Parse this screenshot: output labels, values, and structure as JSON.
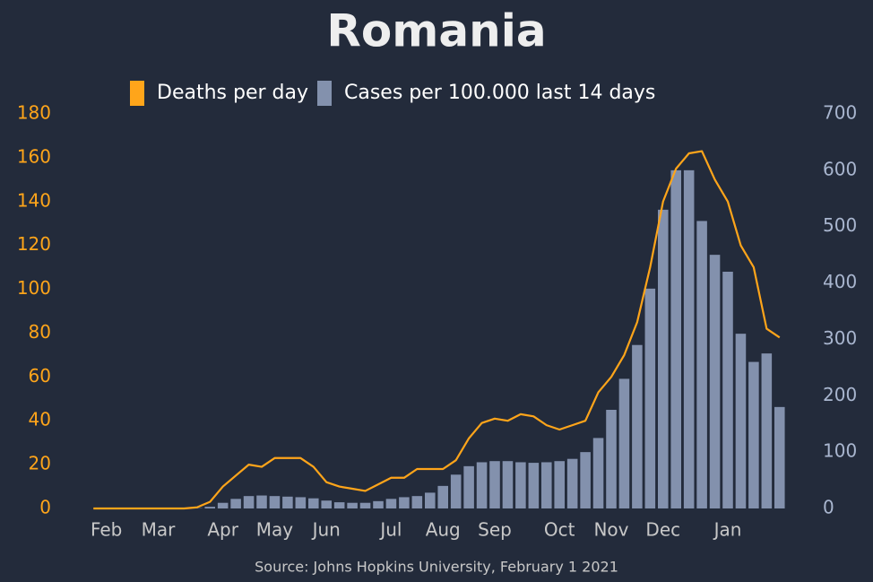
{
  "chart_data": {
    "type": "combo",
    "title": "Romania",
    "source": "Source: Johns Hopkins University, February 1 2021",
    "categories": [
      null,
      "Feb",
      null,
      null,
      null,
      "Mar",
      null,
      null,
      null,
      null,
      "Apr",
      null,
      null,
      null,
      "May",
      null,
      null,
      null,
      "Jun",
      null,
      null,
      null,
      null,
      "Jul",
      null,
      null,
      null,
      "Aug",
      null,
      null,
      null,
      "Sep",
      null,
      null,
      null,
      null,
      "Oct",
      null,
      null,
      null,
      "Nov",
      null,
      null,
      null,
      "Dec",
      null,
      null,
      null,
      null,
      "Jan",
      null,
      null,
      null,
      null
    ],
    "series": [
      {
        "name": "Deaths per day",
        "type": "line",
        "color": "#ffa51a",
        "values": [
          0,
          0,
          0,
          0,
          0,
          0,
          0,
          0,
          0.5,
          3,
          10,
          15,
          20,
          19,
          23,
          23,
          23,
          19,
          12,
          10,
          9,
          8,
          11,
          14,
          14,
          18,
          18,
          18,
          22,
          32,
          39,
          41,
          40,
          43,
          42,
          38,
          36,
          38,
          40,
          53,
          60,
          70,
          85,
          110,
          140,
          155,
          162,
          163,
          150,
          140,
          120,
          110,
          82,
          78
        ]
      },
      {
        "name": "Cases per 100.000 last 14 days",
        "type": "bar",
        "axis": "y2",
        "color": "#8391ad",
        "values": [
          0,
          0,
          0,
          0,
          0,
          0,
          0,
          0,
          0.5,
          3,
          10,
          17,
          22,
          23,
          22,
          21,
          20,
          18,
          14,
          11,
          10,
          10,
          13,
          17,
          20,
          22,
          28,
          40,
          60,
          75,
          82,
          84,
          84,
          82,
          81,
          82,
          84,
          88,
          100,
          125,
          175,
          230,
          290,
          390,
          530,
          600,
          600,
          510,
          450,
          420,
          310,
          260,
          275,
          180
        ]
      }
    ],
    "ylim": [
      0,
      180
    ],
    "yticks": [
      0,
      20,
      40,
      60,
      80,
      100,
      120,
      140,
      160,
      180
    ],
    "y2lim": [
      0,
      700
    ],
    "y2ticks": [
      0,
      100,
      200,
      300,
      400,
      500,
      600,
      700
    ]
  }
}
